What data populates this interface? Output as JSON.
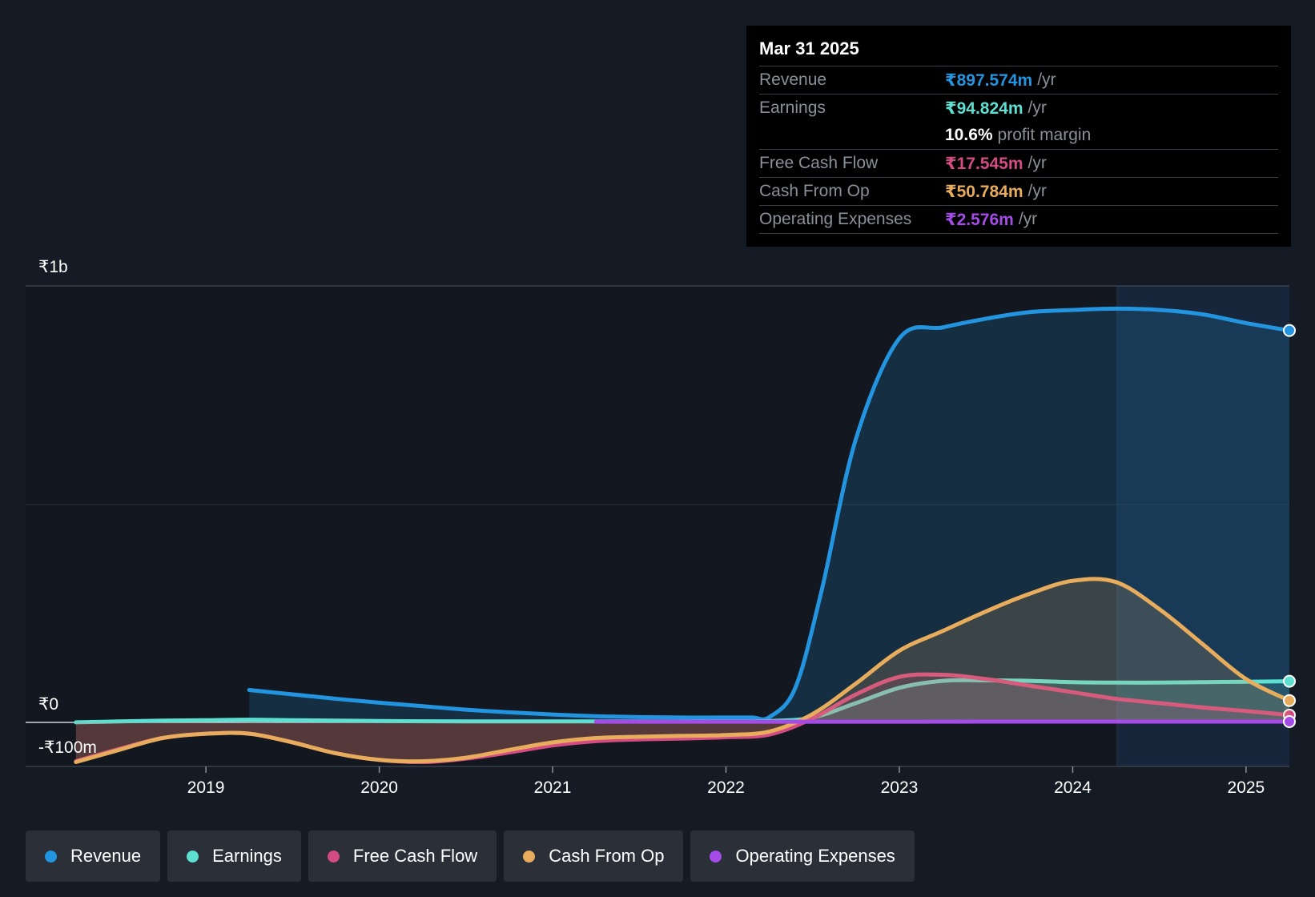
{
  "chart_data": {
    "type": "area",
    "y_axis": {
      "top_label": "₹1b",
      "zero_label": "₹0",
      "bottom_label": "-₹100m",
      "ylim": [
        -100,
        1000
      ],
      "gridlines": [
        0,
        500,
        1000
      ]
    },
    "x_axis": {
      "ticks": [
        "2019",
        "2020",
        "2021",
        "2022",
        "2023",
        "2024",
        "2025"
      ],
      "tick_values": [
        2019.0,
        2020.0,
        2021.0,
        2022.0,
        2023.0,
        2024.0,
        2025.0
      ],
      "xlim": [
        2017.96,
        2025.25
      ]
    },
    "series": [
      {
        "name": "Revenue",
        "color": "#2394df",
        "x": [
          2019.25,
          2019.5,
          2019.75,
          2020.0,
          2020.25,
          2020.5,
          2020.75,
          2021.0,
          2021.25,
          2021.5,
          2021.75,
          2022.0,
          2022.15,
          2022.25,
          2022.4,
          2022.55,
          2022.75,
          2023.0,
          2023.25,
          2023.5,
          2023.75,
          2024.0,
          2024.25,
          2024.5,
          2024.75,
          2025.0,
          2025.25
        ],
        "y": [
          75,
          65,
          55,
          46,
          38,
          30,
          24,
          19,
          15,
          13,
          12,
          12,
          12,
          13,
          80,
          300,
          650,
          880,
          905,
          925,
          940,
          945,
          948,
          945,
          935,
          915,
          898
        ]
      },
      {
        "name": "Earnings",
        "color": "#5ddfd1",
        "x": [
          2018.25,
          2018.5,
          2018.75,
          2019.0,
          2019.25,
          2019.5,
          2019.75,
          2020.0,
          2020.5,
          2021.0,
          2021.5,
          2022.0,
          2022.25,
          2022.5,
          2022.75,
          2023.0,
          2023.25,
          2023.5,
          2023.75,
          2024.0,
          2024.25,
          2024.5,
          2024.75,
          2025.0,
          2025.25
        ],
        "y": [
          1,
          3,
          5,
          6,
          7,
          6,
          5,
          4,
          3,
          3,
          3,
          3,
          4,
          12,
          45,
          80,
          96,
          97,
          96,
          93,
          92,
          92,
          93,
          94,
          95
        ]
      },
      {
        "name": "Free Cash Flow",
        "color": "#d44a83",
        "x": [
          2018.25,
          2018.5,
          2018.75,
          2019.0,
          2019.25,
          2019.5,
          2019.75,
          2020.0,
          2020.25,
          2020.5,
          2020.75,
          2021.0,
          2021.25,
          2021.5,
          2021.75,
          2022.0,
          2022.25,
          2022.5,
          2022.75,
          2023.0,
          2023.25,
          2023.5,
          2023.75,
          2024.0,
          2024.25,
          2024.5,
          2024.75,
          2025.0,
          2025.25
        ],
        "y": [
          -88,
          -60,
          -35,
          -25,
          -25,
          -45,
          -70,
          -85,
          -90,
          -82,
          -68,
          -52,
          -42,
          -38,
          -36,
          -33,
          -27,
          10,
          65,
          105,
          110,
          100,
          85,
          70,
          55,
          45,
          35,
          27,
          17.5
        ]
      },
      {
        "name": "Cash From Op",
        "color": "#e8ac5d",
        "x": [
          2018.25,
          2018.5,
          2018.75,
          2019.0,
          2019.25,
          2019.5,
          2019.75,
          2020.0,
          2020.25,
          2020.5,
          2020.75,
          2021.0,
          2021.25,
          2021.5,
          2021.75,
          2022.0,
          2022.25,
          2022.5,
          2022.75,
          2023.0,
          2023.25,
          2023.5,
          2023.75,
          2024.0,
          2024.25,
          2024.5,
          2024.75,
          2025.0,
          2025.25
        ],
        "y": [
          -90,
          -62,
          -35,
          -25,
          -25,
          -45,
          -70,
          -85,
          -88,
          -80,
          -62,
          -45,
          -35,
          -32,
          -30,
          -28,
          -20,
          20,
          90,
          165,
          210,
          255,
          295,
          325,
          322,
          260,
          180,
          100,
          50.8
        ]
      },
      {
        "name": "Operating Expenses",
        "color": "#a54be8",
        "x": [
          2021.25,
          2021.5,
          2021.75,
          2022.0,
          2022.5,
          2023.0,
          2023.5,
          2024.0,
          2024.5,
          2025.0,
          2025.25
        ],
        "y": [
          2.5,
          2.5,
          2.5,
          2.5,
          2.5,
          2.5,
          2.6,
          2.6,
          2.6,
          2.6,
          2.6
        ]
      }
    ]
  },
  "tooltip": {
    "date": "Mar 31 2025",
    "rows": {
      "revenue": {
        "label": "Revenue",
        "value": "₹897.574m",
        "unit": "/yr"
      },
      "earnings": {
        "label": "Earnings",
        "value": "₹94.824m",
        "unit": "/yr"
      },
      "margin": {
        "value": "10.6%",
        "text": "profit margin"
      },
      "fcf": {
        "label": "Free Cash Flow",
        "value": "₹17.545m",
        "unit": "/yr"
      },
      "cfo": {
        "label": "Cash From Op",
        "value": "₹50.784m",
        "unit": "/yr"
      },
      "opex": {
        "label": "Operating Expenses",
        "value": "₹2.576m",
        "unit": "/yr"
      }
    }
  },
  "legend": {
    "revenue": "Revenue",
    "earnings": "Earnings",
    "fcf": "Free Cash Flow",
    "cfo": "Cash From Op",
    "opex": "Operating Expenses"
  }
}
